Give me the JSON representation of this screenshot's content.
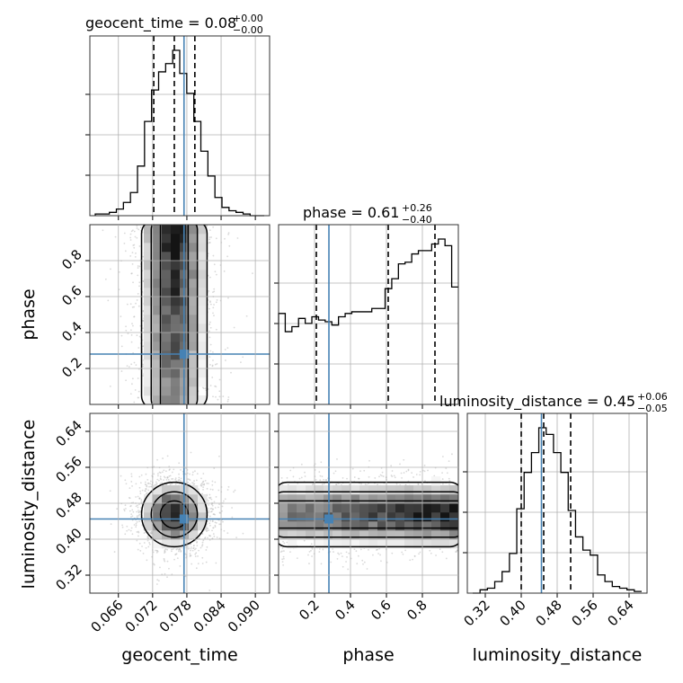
{
  "chart_data": {
    "type": "corner",
    "parameters": [
      "geocent_time",
      "phase",
      "luminosity_distance"
    ],
    "injection": {
      "geocent_time": 0.0775,
      "phase": 0.28,
      "luminosity_distance": 0.445
    },
    "titles": [
      {
        "param": "geocent_time",
        "text": "geocent_time = 0.08",
        "plus": "+0.00",
        "minus": "−0.00"
      },
      {
        "param": "phase",
        "text": "phase = 0.61",
        "plus": "+0.26",
        "minus": "−0.40"
      },
      {
        "param": "luminosity_distance",
        "text": "luminosity_distance = 0.45",
        "plus": "+0.06",
        "minus": "−0.05"
      }
    ],
    "axes": {
      "geocent_time": {
        "label": "geocent_time",
        "range": [
          0.061,
          0.0925
        ],
        "ticks": [
          0.066,
          0.072,
          0.078,
          0.084,
          0.09
        ],
        "tick_labels": [
          "0.066",
          "0.072",
          "0.078",
          "0.084",
          "0.090"
        ]
      },
      "phase": {
        "label": "phase",
        "range": [
          0.0,
          1.0
        ],
        "ticks": [
          0.2,
          0.4,
          0.6,
          0.8
        ],
        "tick_labels": [
          "0.2",
          "0.4",
          "0.6",
          "0.8"
        ]
      },
      "luminosity_distance": {
        "label": "luminosity_distance",
        "range": [
          0.28,
          0.68
        ],
        "ticks": [
          0.32,
          0.4,
          0.48,
          0.56,
          0.64
        ],
        "tick_labels": [
          "0.32",
          "0.40",
          "0.48",
          "0.56",
          "0.64"
        ]
      }
    },
    "quantiles": {
      "geocent_time": [
        0.0722,
        0.0758,
        0.0794
      ],
      "phase": [
        0.21,
        0.61,
        0.87
      ],
      "luminosity_distance": [
        0.4,
        0.45,
        0.51
      ]
    },
    "histograms": {
      "geocent_time": [
        0.01,
        0.01,
        0.02,
        0.04,
        0.08,
        0.14,
        0.3,
        0.57,
        0.76,
        0.87,
        0.92,
        1.0,
        0.86,
        0.74,
        0.57,
        0.39,
        0.24,
        0.11,
        0.05,
        0.03,
        0.02,
        0.01,
        0.0,
        0.0
      ],
      "phase": [
        0.55,
        0.44,
        0.47,
        0.52,
        0.49,
        0.53,
        0.51,
        0.5,
        0.48,
        0.53,
        0.55,
        0.56,
        0.56,
        0.56,
        0.58,
        0.58,
        0.7,
        0.76,
        0.85,
        0.86,
        0.91,
        0.93,
        0.93,
        0.97,
        1.0,
        0.96,
        0.71
      ],
      "luminosity_distance": [
        0.0,
        0.02,
        0.03,
        0.07,
        0.13,
        0.24,
        0.51,
        0.73,
        0.85,
        1.0,
        0.96,
        0.85,
        0.73,
        0.5,
        0.34,
        0.26,
        0.23,
        0.11,
        0.07,
        0.04,
        0.03,
        0.02,
        0.01
      ]
    },
    "grid": true,
    "colors": {
      "truth": "#4682b4",
      "hist": "#000000",
      "density": "#000000",
      "points": "#bbbbbb"
    }
  }
}
